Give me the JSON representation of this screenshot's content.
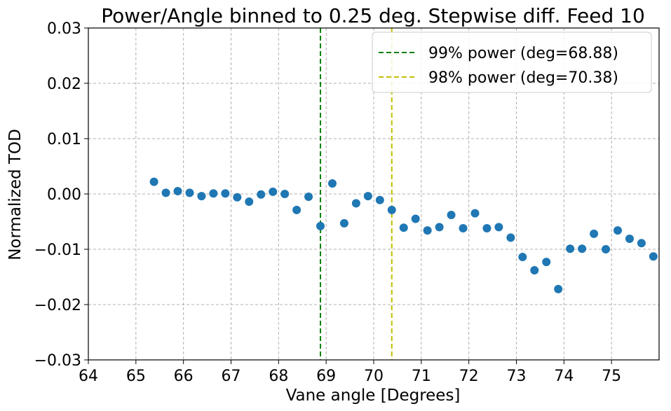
{
  "chart_data": {
    "type": "scatter",
    "title": "Power/Angle binned to 0.25 deg. Stepwise diff. Feed 10",
    "xlabel": "Vane angle [Degrees]",
    "ylabel": "Normalized TOD",
    "xlim": [
      64,
      76
    ],
    "ylim": [
      -0.03,
      0.03
    ],
    "xticks": [
      "64",
      "65",
      "66",
      "67",
      "68",
      "69",
      "70",
      "71",
      "72",
      "73",
      "74",
      "75"
    ],
    "yticks": [
      "0.03",
      "0.02",
      "0.01",
      "0.00",
      "−0.01",
      "−0.02",
      "−0.03"
    ],
    "grid": true,
    "legend_position": "top-right",
    "marker_color": "#1f77b4",
    "points": [
      [
        65.38,
        0.0022
      ],
      [
        65.63,
        0.0002
      ],
      [
        65.88,
        0.0005
      ],
      [
        66.13,
        0.0002
      ],
      [
        66.38,
        -0.0004
      ],
      [
        66.63,
        0.0001
      ],
      [
        66.88,
        0.0001
      ],
      [
        67.13,
        -0.0006
      ],
      [
        67.38,
        -0.0014
      ],
      [
        67.63,
        -0.0001
      ],
      [
        67.88,
        0.0004
      ],
      [
        68.13,
        0.0
      ],
      [
        68.38,
        -0.0029
      ],
      [
        68.63,
        -0.0005
      ],
      [
        68.88,
        -0.0058
      ],
      [
        69.13,
        0.0019
      ],
      [
        69.38,
        -0.0053
      ],
      [
        69.63,
        -0.0017
      ],
      [
        69.88,
        -0.0004
      ],
      [
        70.13,
        -0.0011
      ],
      [
        70.38,
        -0.0029
      ],
      [
        70.63,
        -0.0061
      ],
      [
        70.88,
        -0.0045
      ],
      [
        71.13,
        -0.0066
      ],
      [
        71.38,
        -0.006
      ],
      [
        71.63,
        -0.0038
      ],
      [
        71.88,
        -0.0062
      ],
      [
        72.13,
        -0.0035
      ],
      [
        72.38,
        -0.0062
      ],
      [
        72.63,
        -0.006
      ],
      [
        72.88,
        -0.0079
      ],
      [
        73.13,
        -0.0114
      ],
      [
        73.38,
        -0.0138
      ],
      [
        73.63,
        -0.0123
      ],
      [
        73.88,
        -0.0172
      ],
      [
        74.13,
        -0.0099
      ],
      [
        74.38,
        -0.0099
      ],
      [
        74.63,
        -0.0072
      ],
      [
        74.88,
        -0.01
      ],
      [
        75.13,
        -0.0066
      ],
      [
        75.38,
        -0.0081
      ],
      [
        75.63,
        -0.0089
      ],
      [
        75.88,
        -0.0113
      ]
    ],
    "vlines": [
      {
        "x": 68.88,
        "color": "#008000",
        "label": "99% power (deg=68.88)"
      },
      {
        "x": 70.38,
        "color": "#bfbf00",
        "label": "98% power (deg=70.38)"
      }
    ]
  }
}
